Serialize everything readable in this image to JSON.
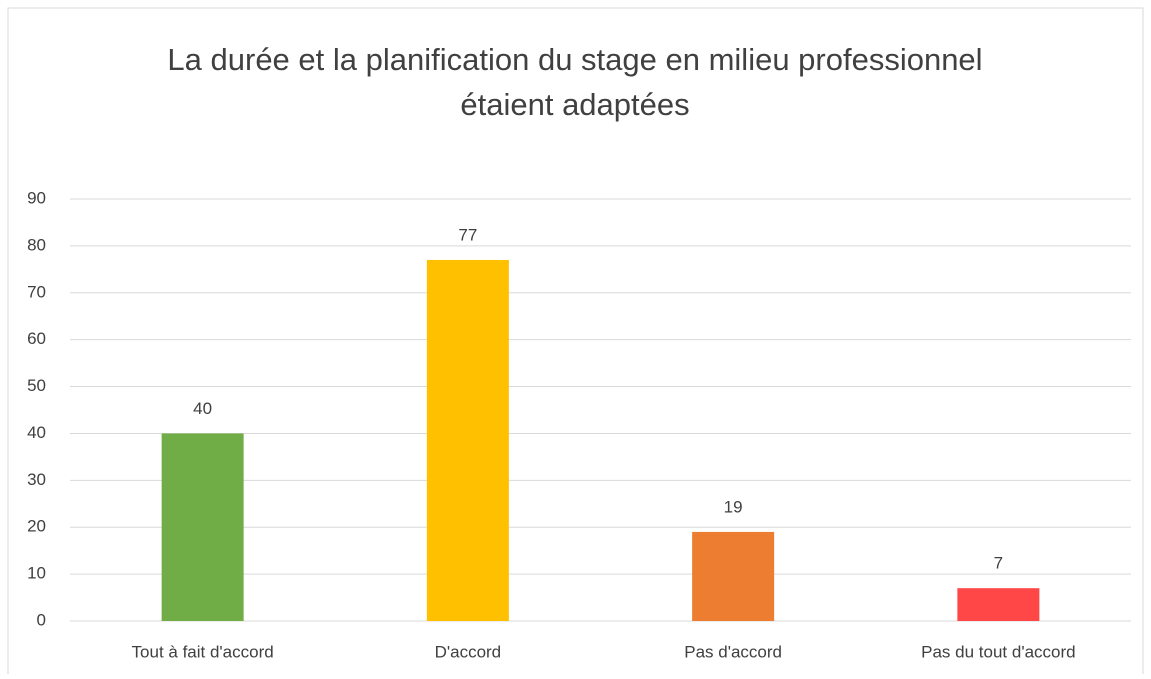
{
  "chart_data": {
    "type": "bar",
    "title": [
      "La durée et la planification du stage en milieu professionnel",
      "étaient adaptées"
    ],
    "categories": [
      "Tout à fait d'accord",
      "D'accord",
      "Pas d'accord",
      "Pas du tout d'accord"
    ],
    "values": [
      40,
      77,
      19,
      7
    ],
    "colors": [
      "#70ad47",
      "#ffc000",
      "#ed7d31",
      "#ff4747"
    ],
    "ylim": [
      0,
      90
    ],
    "yticks": [
      0,
      10,
      20,
      30,
      40,
      50,
      60,
      70,
      80,
      90
    ],
    "grid": true,
    "data_labels": true
  }
}
